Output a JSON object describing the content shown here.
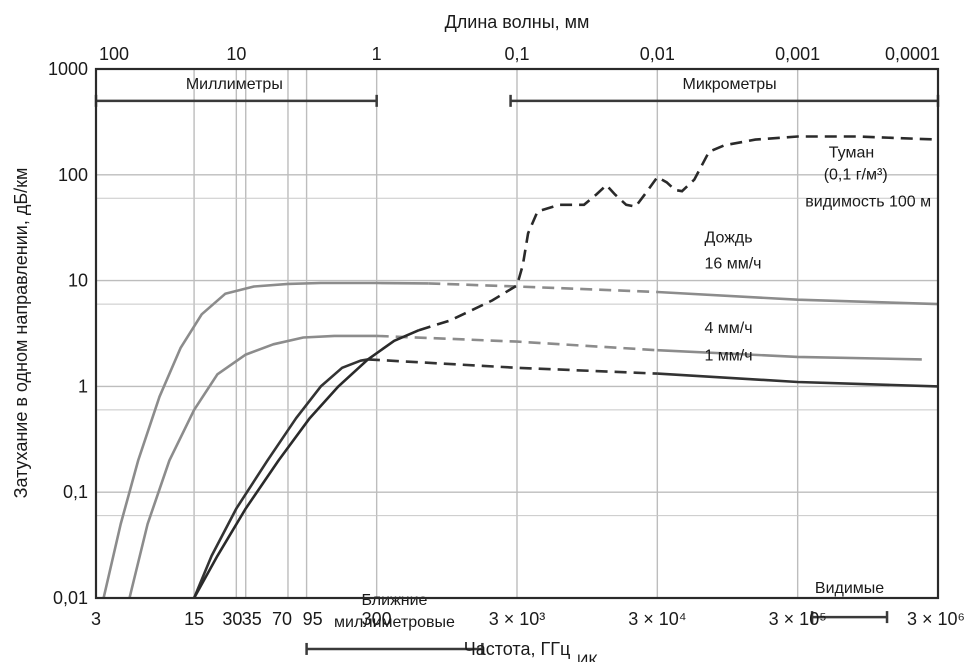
{
  "chart_data": {
    "type": "line",
    "title": "",
    "xlabel": "Частота, ГГц",
    "ylabel": "Затухание в одном направлении, дБ/км",
    "top_xlabel": "Длина волны, мм",
    "x_scale": "log",
    "y_scale": "log",
    "xlim": [
      3,
      3000000
    ],
    "ylim": [
      0.01,
      1000
    ],
    "grid": true,
    "x_ticks": [
      {
        "value": 3,
        "label": "3"
      },
      {
        "value": 15,
        "label": "15"
      },
      {
        "value": 30,
        "label": "30"
      },
      {
        "value": 35,
        "label": "35"
      },
      {
        "value": 70,
        "label": "70"
      },
      {
        "value": 95,
        "label": "95"
      },
      {
        "value": 300,
        "label": "300"
      },
      {
        "value": 3000,
        "label": "3 × 10³"
      },
      {
        "value": 30000,
        "label": "3 × 10⁴"
      },
      {
        "value": 300000,
        "label": "3 × 10⁵"
      },
      {
        "value": 3000000,
        "label": "3 × 10⁶"
      }
    ],
    "top_ticks": [
      {
        "value": 3,
        "label": "100"
      },
      {
        "value": 30,
        "label": "10"
      },
      {
        "value": 300,
        "label": "1"
      },
      {
        "value": 3000,
        "label": "0,1"
      },
      {
        "value": 30000,
        "label": "0,01"
      },
      {
        "value": 300000,
        "label": "0,001"
      },
      {
        "value": 3000000,
        "label": "0,0001"
      }
    ],
    "y_ticks": [
      {
        "value": 0.01,
        "label": "0,01"
      },
      {
        "value": 0.1,
        "label": "0,1"
      },
      {
        "value": 1,
        "label": "1"
      },
      {
        "value": 10,
        "label": "10"
      },
      {
        "value": 100,
        "label": "100"
      },
      {
        "value": 1000,
        "label": "1000"
      }
    ],
    "y_minor_lines": [
      0.06,
      0.6,
      6,
      60
    ],
    "bands": [
      {
        "label": "Миллиметры",
        "x_start": 3,
        "x_end": 300,
        "y": 500
      },
      {
        "label": "Микрометры",
        "x_start": 2700,
        "x_end": 3000000,
        "y": 500
      },
      {
        "label": "Ближние миллиметровые",
        "label_lines": [
          "Ближние",
          "миллиметровые"
        ],
        "x_start": 95,
        "x_end": 1700,
        "y": 0.0033
      },
      {
        "label": "ИК",
        "x_start": 300,
        "x_end": 3000,
        "y": 0.0017
      },
      {
        "label": "ИК",
        "x_start": 27000,
        "x_end": 330000,
        "y": 0.0017
      },
      {
        "label": "Видимые",
        "x_start": 380000,
        "x_end": 1300000,
        "y": 0.0066
      }
    ],
    "series": [
      {
        "name": "16 мм/ч",
        "color": "#8c8c8c",
        "solid": [
          [
            3.4,
            0.01
          ],
          [
            4.5,
            0.05
          ],
          [
            6,
            0.2
          ],
          [
            8.5,
            0.8
          ],
          [
            12,
            2.3
          ],
          [
            17,
            4.8
          ],
          [
            25,
            7.5
          ],
          [
            40,
            8.8
          ],
          [
            70,
            9.3
          ],
          [
            120,
            9.5
          ],
          [
            300,
            9.5
          ],
          [
            700,
            9.4
          ]
        ],
        "dashed": [
          [
            700,
            9.4
          ],
          [
            3000,
            8.8
          ],
          [
            30000,
            7.8
          ]
        ],
        "tail": [
          [
            30000,
            7.8
          ],
          [
            300000,
            6.6
          ],
          [
            3000000,
            6
          ]
        ]
      },
      {
        "name": "4 мм/ч",
        "color": "#8c8c8c",
        "solid": [
          [
            5.2,
            0.01
          ],
          [
            7,
            0.05
          ],
          [
            10,
            0.2
          ],
          [
            15,
            0.6
          ],
          [
            22,
            1.3
          ],
          [
            35,
            2.0
          ],
          [
            55,
            2.5
          ],
          [
            90,
            2.9
          ],
          [
            150,
            3.0
          ],
          [
            300,
            3.0
          ]
        ],
        "dashed": [
          [
            300,
            3.0
          ],
          [
            3000,
            2.65
          ],
          [
            30000,
            2.2
          ]
        ],
        "tail": [
          [
            30000,
            2.2
          ],
          [
            300000,
            1.9
          ],
          [
            2300000,
            1.8
          ]
        ]
      },
      {
        "name": "1 мм/ч",
        "color": "#333333",
        "solid": [
          [
            15,
            0.01
          ],
          [
            20,
            0.025
          ],
          [
            30,
            0.07
          ],
          [
            50,
            0.2
          ],
          [
            80,
            0.5
          ],
          [
            120,
            1.0
          ],
          [
            170,
            1.5
          ],
          [
            230,
            1.75
          ],
          [
            260,
            1.8
          ]
        ],
        "dashed": [
          [
            260,
            1.8
          ],
          [
            3000,
            1.5
          ],
          [
            30000,
            1.32
          ]
        ],
        "tail": [
          [
            30000,
            1.32
          ],
          [
            300000,
            1.1
          ],
          [
            3000000,
            1.0
          ]
        ]
      },
      {
        "name": "Туман (0,1 г/м³) видимость 100 м",
        "color": "#2a2a2a",
        "solid": [
          [
            15,
            0.01
          ],
          [
            22,
            0.025
          ],
          [
            35,
            0.07
          ],
          [
            60,
            0.2
          ],
          [
            100,
            0.5
          ],
          [
            160,
            1.0
          ],
          [
            260,
            1.8
          ],
          [
            400,
            2.7
          ],
          [
            600,
            3.4
          ]
        ],
        "dashed": [
          [
            600,
            3.4
          ],
          [
            1000,
            4.2
          ],
          [
            2000,
            6.5
          ],
          [
            3000,
            9.0
          ],
          [
            3300,
            14
          ],
          [
            3600,
            28
          ],
          [
            4200,
            45
          ],
          [
            6000,
            52
          ],
          [
            9000,
            52
          ],
          [
            11000,
            65
          ],
          [
            13000,
            80
          ],
          [
            15000,
            65
          ],
          [
            18000,
            52
          ],
          [
            21000,
            50
          ],
          [
            25000,
            68
          ],
          [
            30000,
            95
          ],
          [
            35000,
            85
          ],
          [
            40000,
            72
          ],
          [
            45000,
            70
          ],
          [
            55000,
            90
          ],
          [
            70000,
            165
          ],
          [
            90000,
            190
          ],
          [
            150000,
            215
          ],
          [
            300000,
            230
          ],
          [
            800000,
            230
          ],
          [
            3000000,
            215
          ]
        ]
      }
    ],
    "annotations": [
      {
        "text": "Туман",
        "x": 500000,
        "y": 145
      },
      {
        "text": "(0,1 г/м³)",
        "x": 460000,
        "y": 90
      },
      {
        "text": "видимость 100 м",
        "x": 340000,
        "y": 50
      },
      {
        "text": "Дождь",
        "x": 65000,
        "y": 23
      },
      {
        "text": "16 мм/ч",
        "x": 65000,
        "y": 13
      },
      {
        "text": "4 мм/ч",
        "x": 65000,
        "y": 3.2
      },
      {
        "text": "1 мм/ч",
        "x": 65000,
        "y": 1.75
      }
    ]
  }
}
